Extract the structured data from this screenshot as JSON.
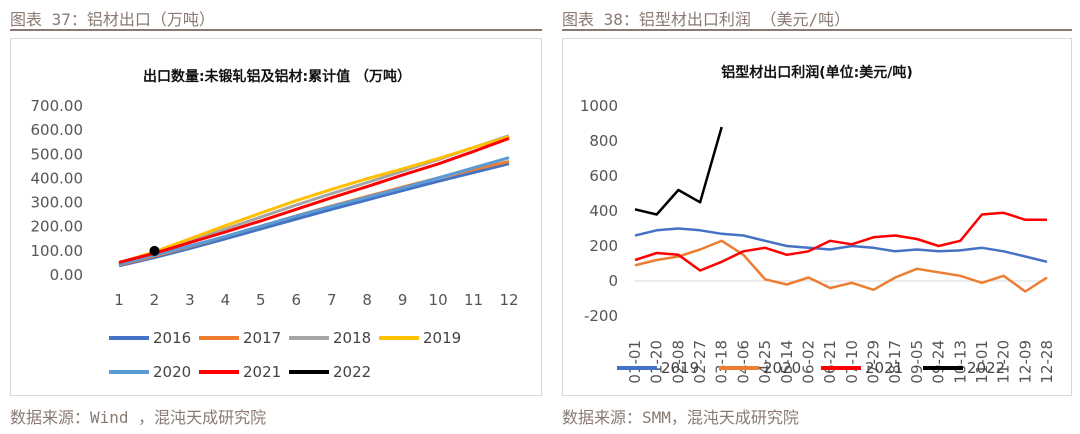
{
  "captions": {
    "left": "图表 37：铝材出口（万吨）",
    "right": "图表 38：铝型材出口利润 （美元/吨）"
  },
  "sources": {
    "left": "数据来源：Wind ，混沌天成研究院",
    "right": "数据来源：SMM，混沌天成研究院"
  },
  "chart_data": [
    {
      "type": "line",
      "title": "出口数量:未锻轧铝及铝材:累计值 （万吨）",
      "x": [
        1,
        2,
        3,
        4,
        5,
        6,
        7,
        8,
        9,
        10,
        11,
        12
      ],
      "y_ticks": [
        "0.00",
        "100.00",
        "200.00",
        "300.00",
        "400.00",
        "500.00",
        "600.00",
        "700.00"
      ],
      "ylim": [
        0,
        700
      ],
      "grid": false,
      "legend_position": "bottom",
      "series": [
        {
          "name": "2016",
          "color": "#4472c4",
          "values": [
            38,
            72,
            110,
            150,
            191,
            232,
            272,
            311,
            350,
            388,
            424,
            461
          ]
        },
        {
          "name": "2017",
          "color": "#ed7d31",
          "values": [
            42,
            78,
            118,
            160,
            202,
            245,
            286,
            325,
            364,
            402,
            436,
            470
          ]
        },
        {
          "name": "2018",
          "color": "#a5a5a5",
          "values": [
            48,
            90,
            140,
            190,
            240,
            290,
            337,
            383,
            430,
            478,
            528,
            577
          ]
        },
        {
          "name": "2019",
          "color": "#ffc000",
          "values": [
            50,
            96,
            150,
            204,
            257,
            308,
            355,
            399,
            440,
            482,
            528,
            573
          ]
        },
        {
          "name": "2020",
          "color": "#5b9bd5",
          "values": [
            44,
            82,
            120,
            160,
            202,
            244,
            284,
            322,
            360,
            402,
            444,
            486
          ]
        },
        {
          "name": "2021",
          "color": "#ff0000",
          "values": [
            52,
            90,
            134,
            178,
            224,
            272,
            320,
            366,
            414,
            460,
            512,
            566
          ]
        },
        {
          "name": "2022",
          "color": "#000000",
          "values": [
            null,
            100,
            null,
            null,
            null,
            null,
            null,
            null,
            null,
            null,
            null,
            null
          ]
        }
      ]
    },
    {
      "type": "line",
      "title": "铝型材出口利润(单位:美元/吨)",
      "categories": [
        "01-01",
        "01-20",
        "02-08",
        "02-27",
        "03-18",
        "04-06",
        "04-25",
        "05-14",
        "06-02",
        "06-21",
        "07-10",
        "07-29",
        "08-17",
        "09-05",
        "09-24",
        "10-13",
        "11-01",
        "11-20",
        "12-09",
        "12-28"
      ],
      "y_ticks": [
        "-200",
        "0",
        "200",
        "400",
        "600",
        "800",
        "1000"
      ],
      "ylim": [
        -200,
        1000
      ],
      "grid": false,
      "legend_position": "bottom",
      "series": [
        {
          "name": "2019",
          "color": "#4472c4",
          "values": [
            260,
            290,
            300,
            290,
            270,
            260,
            230,
            200,
            190,
            180,
            200,
            190,
            170,
            180,
            170,
            175,
            190,
            170,
            140,
            110
          ]
        },
        {
          "name": "2020",
          "color": "#ed7d31",
          "values": [
            90,
            120,
            140,
            180,
            230,
            150,
            10,
            -20,
            20,
            -40,
            -10,
            -50,
            20,
            70,
            50,
            30,
            -10,
            30,
            -60,
            20
          ]
        },
        {
          "name": "2021",
          "color": "#ff0000",
          "values": [
            120,
            160,
            150,
            60,
            110,
            170,
            190,
            150,
            170,
            230,
            210,
            250,
            260,
            240,
            200,
            230,
            380,
            390,
            350,
            350
          ]
        },
        {
          "name": "2022",
          "color": "#000000",
          "values": [
            410,
            380,
            520,
            450,
            880,
            null,
            null,
            null,
            null,
            null,
            null,
            null,
            null,
            null,
            null,
            null,
            null,
            null,
            null,
            null
          ]
        }
      ]
    }
  ]
}
